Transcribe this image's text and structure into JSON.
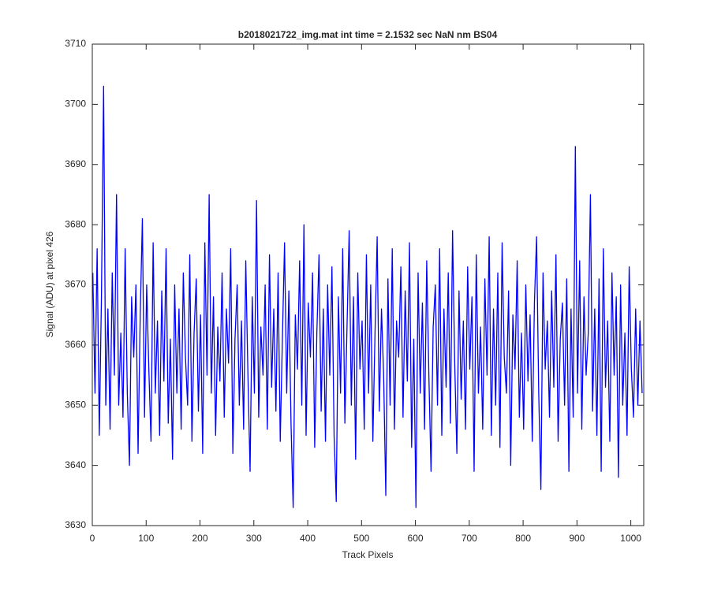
{
  "chart_data": {
    "type": "line",
    "title": "b2018021722_img.mat int time = 2.1532 sec  NaN nm BS04",
    "x_label": "Track Pixels",
    "y_label": "Signal (ADU) at pixel 426",
    "color": "#0000ff",
    "xlim": [
      0,
      1024
    ],
    "ylim": [
      3630,
      3710
    ],
    "xticks": [
      0,
      100,
      200,
      300,
      400,
      500,
      600,
      700,
      800,
      900,
      1000
    ],
    "yticks": [
      3630,
      3640,
      3650,
      3660,
      3670,
      3680,
      3690,
      3700,
      3710
    ],
    "x": [
      1,
      5,
      9,
      13,
      17,
      21,
      25,
      29,
      33,
      37,
      41,
      45,
      49,
      53,
      57,
      61,
      65,
      69,
      73,
      77,
      81,
      85,
      89,
      93,
      97,
      101,
      105,
      109,
      113,
      117,
      121,
      125,
      129,
      133,
      137,
      141,
      145,
      149,
      153,
      157,
      161,
      165,
      169,
      173,
      177,
      181,
      185,
      189,
      193,
      197,
      201,
      205,
      209,
      213,
      217,
      221,
      225,
      229,
      233,
      237,
      241,
      245,
      249,
      253,
      257,
      261,
      265,
      269,
      273,
      277,
      281,
      285,
      289,
      293,
      297,
      301,
      305,
      309,
      313,
      317,
      321,
      325,
      329,
      333,
      337,
      341,
      345,
      349,
      353,
      357,
      361,
      365,
      369,
      373,
      377,
      381,
      385,
      389,
      393,
      397,
      401,
      405,
      409,
      413,
      417,
      421,
      425,
      429,
      433,
      437,
      441,
      445,
      449,
      453,
      457,
      461,
      465,
      469,
      473,
      477,
      481,
      485,
      489,
      493,
      497,
      501,
      505,
      509,
      513,
      517,
      521,
      525,
      529,
      533,
      537,
      541,
      545,
      549,
      553,
      557,
      561,
      565,
      569,
      573,
      577,
      581,
      585,
      589,
      593,
      597,
      601,
      605,
      609,
      613,
      617,
      621,
      625,
      629,
      633,
      637,
      641,
      645,
      649,
      653,
      657,
      661,
      665,
      669,
      673,
      677,
      681,
      685,
      689,
      693,
      697,
      701,
      705,
      709,
      713,
      717,
      721,
      725,
      729,
      733,
      737,
      741,
      745,
      749,
      753,
      757,
      761,
      765,
      769,
      773,
      777,
      781,
      785,
      789,
      793,
      797,
      801,
      805,
      809,
      813,
      817,
      821,
      825,
      829,
      833,
      837,
      841,
      845,
      849,
      853,
      857,
      861,
      865,
      869,
      873,
      877,
      881,
      885,
      889,
      893,
      897,
      901,
      905,
      909,
      913,
      917,
      921,
      925,
      929,
      933,
      937,
      941,
      945,
      949,
      953,
      957,
      961,
      965,
      969,
      973,
      977,
      981,
      985,
      989,
      993,
      997,
      1001,
      1005,
      1009,
      1013,
      1017,
      1021
    ],
    "values": [
      3672,
      3652,
      3676,
      3645,
      3668,
      3703,
      3650,
      3666,
      3646,
      3672,
      3655,
      3685,
      3650,
      3662,
      3648,
      3676,
      3652,
      3640,
      3668,
      3658,
      3670,
      3642,
      3665,
      3681,
      3648,
      3670,
      3656,
      3644,
      3677,
      3652,
      3664,
      3645,
      3669,
      3654,
      3676,
      3647,
      3661,
      3641,
      3670,
      3652,
      3666,
      3646,
      3672,
      3658,
      3650,
      3675,
      3644,
      3662,
      3671,
      3649,
      3665,
      3642,
      3677,
      3655,
      3685,
      3652,
      3668,
      3645,
      3663,
      3654,
      3672,
      3648,
      3666,
      3657,
      3676,
      3642,
      3661,
      3670,
      3650,
      3664,
      3646,
      3674,
      3655,
      3639,
      3668,
      3652,
      3684,
      3648,
      3663,
      3655,
      3670,
      3646,
      3675,
      3653,
      3666,
      3649,
      3672,
      3644,
      3661,
      3677,
      3652,
      3669,
      3647,
      3633,
      3665,
      3656,
      3674,
      3650,
      3680,
      3645,
      3667,
      3658,
      3672,
      3643,
      3662,
      3675,
      3649,
      3666,
      3644,
      3670,
      3655,
      3673,
      3645,
      3634,
      3668,
      3652,
      3676,
      3647,
      3663,
      3679,
      3650,
      3668,
      3641,
      3672,
      3656,
      3664,
      3646,
      3675,
      3652,
      3670,
      3644,
      3662,
      3678,
      3649,
      3666,
      3655,
      3635,
      3671,
      3650,
      3676,
      3646,
      3664,
      3658,
      3673,
      3648,
      3669,
      3654,
      3677,
      3643,
      3661,
      3633,
      3672,
      3652,
      3667,
      3646,
      3674,
      3655,
      3639,
      3663,
      3670,
      3650,
      3676,
      3645,
      3666,
      3653,
      3672,
      3647,
      3679,
      3657,
      3642,
      3669,
      3651,
      3664,
      3646,
      3673,
      3656,
      3668,
      3639,
      3675,
      3652,
      3663,
      3646,
      3671,
      3655,
      3678,
      3645,
      3666,
      3650,
      3672,
      3643,
      3677,
      3658,
      3652,
      3669,
      3640,
      3665,
      3656,
      3674,
      3648,
      3662,
      3646,
      3670,
      3654,
      3665,
      3644,
      3667,
      3678,
      3652,
      3636,
      3672,
      3656,
      3664,
      3648,
      3669,
      3653,
      3675,
      3644,
      3661,
      3667,
      3650,
      3671,
      3639,
      3666,
      3648,
      3693,
      3652,
      3674,
      3646,
      3668,
      3655,
      3662,
      3685,
      3649,
      3666,
      3645,
      3671,
      3639,
      3676,
      3653,
      3664,
      3644,
      3672,
      3655,
      3668,
      3638,
      3670,
      3650,
      3662,
      3645,
      3673,
      3656,
      3648,
      3666,
      3650,
      3664,
      3652
    ]
  }
}
